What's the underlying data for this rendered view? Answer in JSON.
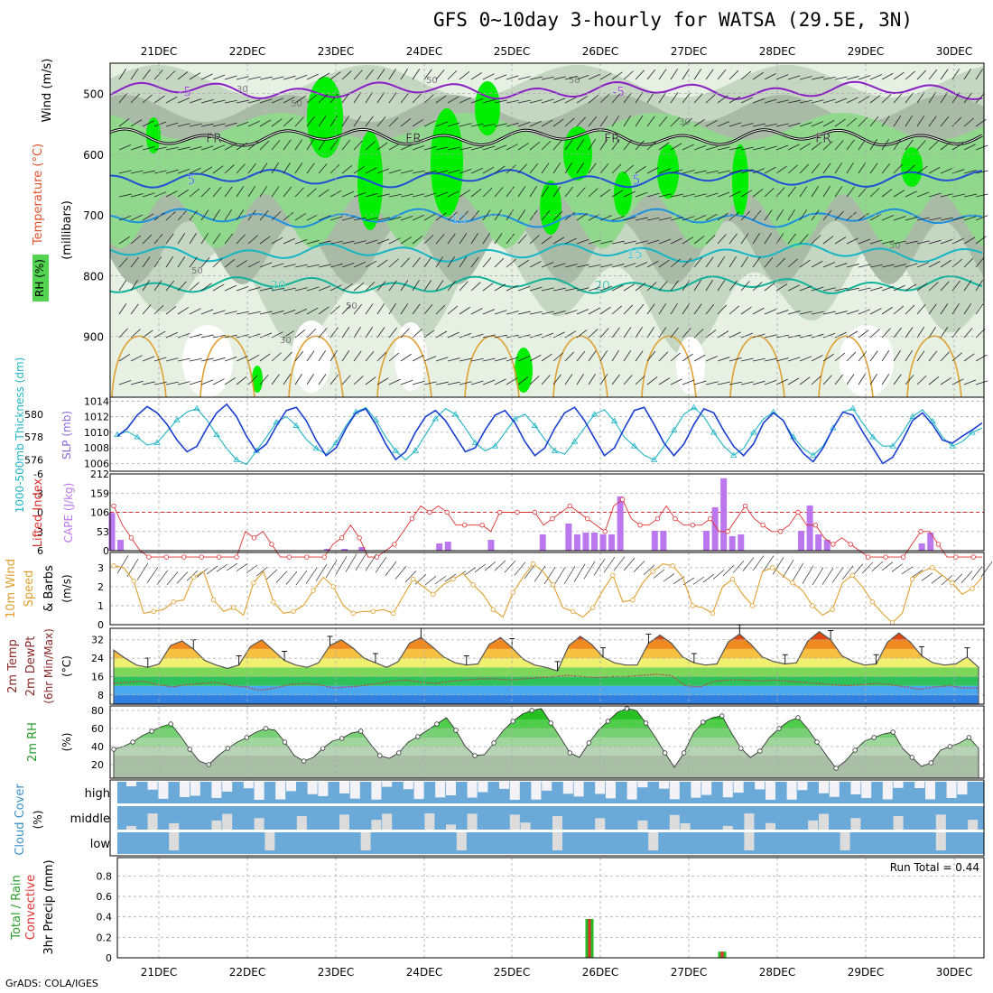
{
  "title": "GFS 0~10day 3-hourly for WATSA (29.5E, 3N)",
  "footer": "GrADS: COLA/IGES",
  "colors": {
    "rh_light": "#e6f1e3",
    "rh_mid": "#c5d7c3",
    "rh_dark": "#a9bba7",
    "rh_green1": "#8fd88c",
    "rh_green2": "#52d352",
    "rh_green3": "#00ee00",
    "temp_purple": "#8a1fc4",
    "temp_blue": "#1f4fd6",
    "temp_lightblue": "#1b8fe0",
    "temp_cyan": "#14b5c5",
    "temp_teal": "#10b39a",
    "temp_orange": "#e0a030",
    "freezing": "#000000",
    "slp": "#1a3fd0",
    "thickness": "#20b5c5",
    "cape": "#bb77ee",
    "lifted": "#dd3030",
    "wind10": "#e0a030",
    "cloud_blue": "#6baad8",
    "cloud_white": "#f3f2f7",
    "cloud_gray": "#dcdcdc",
    "precip_green": "#22bb22",
    "precip_red": "#e03030"
  },
  "chart_data": [
    {
      "panel": "upper-air",
      "type": "heatmap",
      "ylabel": "(millibars)",
      "legend_labels": [
        "Wind (m/s)",
        "Temperature (°C)",
        "RH (%)"
      ],
      "y_ticks": [
        500,
        600,
        700,
        800,
        900
      ],
      "ylim": [
        1000,
        450
      ],
      "x_ticks": [
        "21DEC",
        "22DEC",
        "23DEC",
        "24DEC",
        "25DEC",
        "26DEC",
        "27DEC",
        "28DEC",
        "29DEC",
        "30DEC"
      ],
      "temperature_contours": [
        {
          "label": "-5",
          "pressure": 495
        },
        {
          "label": "FR",
          "pressure": 572
        },
        {
          "label": "5",
          "pressure": 640
        },
        {
          "label": "10",
          "pressure": 705
        },
        {
          "label": "15",
          "pressure": 762
        },
        {
          "label": "20",
          "pressure": 815
        }
      ],
      "rh_contour_labels": [
        "30",
        "50"
      ]
    },
    {
      "panel": "slp-thickness",
      "type": "line",
      "series": [
        {
          "name": "SLP (mb)",
          "axis": "right",
          "y_ticks": [
            1006,
            1008,
            1010,
            1012,
            1014
          ],
          "values": [
            1009.5,
            1010.5,
            1012.2,
            1013.3,
            1012.5,
            1011.0,
            1009.0,
            1007.5,
            1008.2,
            1010.5,
            1012.5,
            1013.6,
            1012.0,
            1009.5,
            1007.5,
            1008.5,
            1010.8,
            1012.8,
            1013.2,
            1011.5,
            1009.0,
            1007.0,
            1008.0,
            1010.5,
            1012.5,
            1013.0,
            1011.0,
            1008.5,
            1006.5,
            1007.5,
            1010.0,
            1012.0,
            1012.8,
            1011.5,
            1009.5,
            1007.5,
            1008.0,
            1010.3,
            1012.2,
            1012.8,
            1011.2,
            1008.8,
            1007.0,
            1008.0,
            1010.5,
            1012.5,
            1013.2,
            1011.5,
            1009.2,
            1007.0,
            1008.0,
            1010.5,
            1012.8,
            1013.2,
            1011.0,
            1008.6,
            1007.0,
            1008.5,
            1011.0,
            1013.0,
            1012.5,
            1010.2,
            1008.2,
            1007.0,
            1008.5,
            1011.2,
            1012.5,
            1011.5,
            1009.0,
            1007.3,
            1006.2,
            1008.0,
            1010.5,
            1012.6,
            1012.2,
            1010.0,
            1008.0,
            1006.0,
            1006.8,
            1009.0,
            1011.5,
            1012.5,
            1011.0,
            1009.0,
            1008.6,
            1009.5,
            1010.3,
            1011.2
          ]
        },
        {
          "name": "1000-500mb Thickness (dm)",
          "axis": "left",
          "y_ticks": [
            576,
            578,
            580
          ],
          "values": [
            578.2,
            578.5,
            578.0,
            577.3,
            577.5,
            578.5,
            579.5,
            580.2,
            580.5,
            579.5,
            578.2,
            577.0,
            576.0,
            575.6,
            576.8,
            578.0,
            579.3,
            579.8,
            579.0,
            577.8,
            577.0,
            576.5,
            577.5,
            579.0,
            580.2,
            580.6,
            579.5,
            578.0,
            576.8,
            576.0,
            576.8,
            578.2,
            579.6,
            580.5,
            580.0,
            578.8,
            577.5,
            576.8,
            577.2,
            578.4,
            579.6,
            580.0,
            579.0,
            577.8,
            576.8,
            576.5,
            577.6,
            578.8,
            580.0,
            580.4,
            579.4,
            578.0,
            577.2,
            576.4,
            576.0,
            577.2,
            578.6,
            580.0,
            580.6,
            579.8,
            578.4,
            577.2,
            576.4,
            577.0,
            578.4,
            579.6,
            580.2,
            579.4,
            578.0,
            577.0,
            576.4,
            577.2,
            578.8,
            580.2,
            580.5,
            579.2,
            578.0,
            577.2,
            577.2,
            578.4,
            579.8,
            580.4,
            579.4,
            578.0,
            577.2,
            577.6,
            578.4,
            578.8
          ]
        }
      ]
    },
    {
      "panel": "cape-lifted",
      "type": "bar",
      "series": [
        {
          "name": "CAPE (J/kg)",
          "axis": "right",
          "y_ticks": [
            0,
            53,
            106,
            159,
            212
          ],
          "values": [
            104,
            30,
            0,
            0,
            0,
            0,
            0,
            0,
            0,
            0,
            0,
            0,
            0,
            0,
            0,
            0,
            0,
            0,
            0,
            0,
            0,
            0,
            0,
            0,
            0,
            5,
            0,
            5,
            0,
            10,
            0,
            0,
            0,
            0,
            0,
            0,
            0,
            0,
            20,
            25,
            0,
            0,
            0,
            0,
            30,
            0,
            0,
            0,
            0,
            0,
            45,
            0,
            0,
            75,
            45,
            50,
            50,
            45,
            45,
            150,
            0,
            0,
            0,
            55,
            55,
            0,
            0,
            0,
            0,
            55,
            120,
            200,
            40,
            45,
            0,
            0,
            0,
            0,
            0,
            0,
            55,
            125,
            45,
            30,
            0,
            0,
            0,
            0,
            0,
            0,
            0,
            0,
            0,
            0,
            20,
            50,
            0,
            0,
            0,
            0,
            0,
            0
          ]
        },
        {
          "name": "Lifted Index",
          "axis": "left",
          "y_ticks": [
            -6,
            -3,
            0,
            3,
            6
          ],
          "values": [
            -1,
            2,
            4,
            6,
            7,
            7,
            7,
            7,
            7,
            7,
            7,
            7,
            7,
            7,
            7,
            3,
            4,
            3,
            5,
            7,
            7,
            7,
            7,
            7,
            7,
            5,
            4,
            2,
            4,
            7,
            7,
            6,
            5,
            3,
            1,
            -1,
            0,
            -1,
            0,
            2,
            2,
            2,
            2,
            3,
            0,
            0,
            0,
            0,
            0,
            2,
            1,
            0,
            -1,
            0,
            1,
            2,
            3,
            -1,
            -2,
            1,
            2,
            2,
            1,
            -1,
            1,
            2,
            2,
            2,
            1,
            3,
            3,
            1,
            -1,
            1,
            2,
            3,
            3,
            2,
            0,
            2,
            2,
            4,
            5,
            4,
            5,
            6,
            7,
            7,
            7,
            7,
            7,
            5,
            3,
            3,
            5,
            7,
            7,
            7,
            7,
            7
          ]
        }
      ]
    },
    {
      "panel": "wind10",
      "type": "line",
      "ylabel": "(m/s)",
      "legend_labels": [
        "10m Wind",
        "Speed",
        "& Barbs"
      ],
      "y_ticks": [
        0,
        1,
        2,
        3
      ],
      "values": [
        3.1,
        3.0,
        2.3,
        0.6,
        0.7,
        0.8,
        1.2,
        1.3,
        2.5,
        2.8,
        1.3,
        0.7,
        0.9,
        0.5,
        2.2,
        2.8,
        1.2,
        0.6,
        0.7,
        1.0,
        1.8,
        2.5,
        2.0,
        1.0,
        0.6,
        0.7,
        0.7,
        0.8,
        0.6,
        1.5,
        2.4,
        2.0,
        1.6,
        2.1,
        2.4,
        2.7,
        2.1,
        1.6,
        0.8,
        0.4,
        1.7,
        2.5,
        3.2,
        2.8,
        2.1,
        0.9,
        0.7,
        0.4,
        0.9,
        1.8,
        2.6,
        1.2,
        1.3,
        2.2,
        2.8,
        3.2,
        3.1,
        2.5,
        1.0,
        0.9,
        0.6,
        2.0,
        2.4,
        1.6,
        1.0,
        2.8,
        3.0,
        2.6,
        2.2,
        1.8,
        1.0,
        0.5,
        0.8,
        2.2,
        2.6,
        2.0,
        1.2,
        0.6,
        0.1,
        0.6,
        2.4,
        2.8,
        3.0,
        2.6,
        2.2,
        1.6,
        1.9,
        2.5
      ]
    },
    {
      "panel": "temp-dewpoint",
      "type": "area",
      "ylabel": "(°C)",
      "legend_labels": [
        "2m Temp",
        "2m DewPt",
        "(6hr Min/Max)"
      ],
      "y_ticks": [
        8,
        16,
        24,
        32
      ],
      "series": [
        {
          "name": "2m Temp",
          "values": [
            27.5,
            24.0,
            21.0,
            20.0,
            21.5,
            29.5,
            31.5,
            28.0,
            23.0,
            21.0,
            19.5,
            21.0,
            29.0,
            32.0,
            27.5,
            23.0,
            21.0,
            20.0,
            22.0,
            29.5,
            32.0,
            28.5,
            24.0,
            22.0,
            20.0,
            22.5,
            30.5,
            33.0,
            29.0,
            24.5,
            22.0,
            21.0,
            21.5,
            30.0,
            33.0,
            28.5,
            23.5,
            21.0,
            20.0,
            18.5,
            29.5,
            33.5,
            30.0,
            24.5,
            22.0,
            21.0,
            21.0,
            30.5,
            34.0,
            30.5,
            24.5,
            22.0,
            21.0,
            21.5,
            31.0,
            34.5,
            30.0,
            24.5,
            22.5,
            21.5,
            22.0,
            31.5,
            35.5,
            32.0,
            25.0,
            22.5,
            21.0,
            21.5,
            31.0,
            35.0,
            31.0,
            25.0,
            22.0,
            21.0,
            21.5,
            24.5,
            20.0
          ]
        },
        {
          "name": "2m DewPt",
          "values": [
            13.0,
            13.5,
            14.0,
            12.5,
            11.5,
            12.5,
            13.0,
            13.5,
            12.0,
            11.5,
            10.0,
            11.0,
            12.5,
            13.0,
            12.5,
            11.0,
            11.5,
            12.0,
            13.0,
            14.0,
            14.5,
            13.5,
            13.0,
            14.0,
            14.5,
            15.0,
            15.0,
            14.5,
            15.0,
            15.5,
            16.0,
            16.5,
            16.0,
            15.5,
            16.0,
            16.0,
            16.5,
            17.0,
            16.5,
            12.0,
            11.5,
            14.0,
            14.5,
            14.5,
            14.0,
            14.5,
            14.0,
            13.5,
            13.0,
            12.5,
            12.0,
            12.5,
            13.0,
            12.5,
            11.5,
            10.5,
            11.5,
            12.0,
            11.0,
            11.0
          ]
        }
      ]
    },
    {
      "panel": "rh2m",
      "type": "area",
      "ylabel": "(%)",
      "legend_labels": [
        "2m RH"
      ],
      "y_ticks": [
        20,
        40,
        60,
        80
      ],
      "values": [
        37,
        40,
        45,
        52,
        57,
        62,
        65,
        52,
        37,
        24,
        20,
        30,
        38,
        45,
        50,
        56,
        60,
        58,
        45,
        30,
        24,
        28,
        38,
        46,
        49,
        55,
        57,
        43,
        30,
        27,
        33,
        45,
        51,
        58,
        65,
        72,
        58,
        40,
        30,
        31,
        44,
        58,
        68,
        76,
        80,
        82,
        66,
        50,
        33,
        28,
        44,
        58,
        68,
        78,
        82,
        80,
        66,
        50,
        33,
        17,
        33,
        55,
        67,
        72,
        74,
        55,
        38,
        28,
        35,
        50,
        60,
        68,
        72,
        60,
        45,
        30,
        16,
        24,
        36,
        46,
        50,
        54,
        56,
        38,
        28,
        18,
        22,
        36,
        40,
        44,
        50,
        38
      ]
    },
    {
      "panel": "cloud-cover",
      "type": "bar",
      "ylabel": "(%)",
      "legend_labels": [
        "Cloud Cover"
      ],
      "categories": [
        "high",
        "middle",
        "low"
      ]
    },
    {
      "panel": "precip",
      "type": "bar",
      "ylabel": "3hr Precip (mm)",
      "legend_labels": [
        "Total / Rain",
        "Convective"
      ],
      "y_ticks": [
        0,
        0.2,
        0.4,
        0.6,
        0.8
      ],
      "annotation": "Run Total = 0.44",
      "bars": [
        {
          "time": "26DEC 06Z",
          "total": 0.38,
          "convective": 0.38
        },
        {
          "time": "27DEC 18Z",
          "total": 0.06,
          "convective": 0.06
        }
      ],
      "x_ticks": [
        "21DEC",
        "22DEC",
        "23DEC",
        "24DEC",
        "25DEC",
        "26DEC",
        "27DEC",
        "28DEC",
        "29DEC",
        "30DEC"
      ]
    }
  ]
}
